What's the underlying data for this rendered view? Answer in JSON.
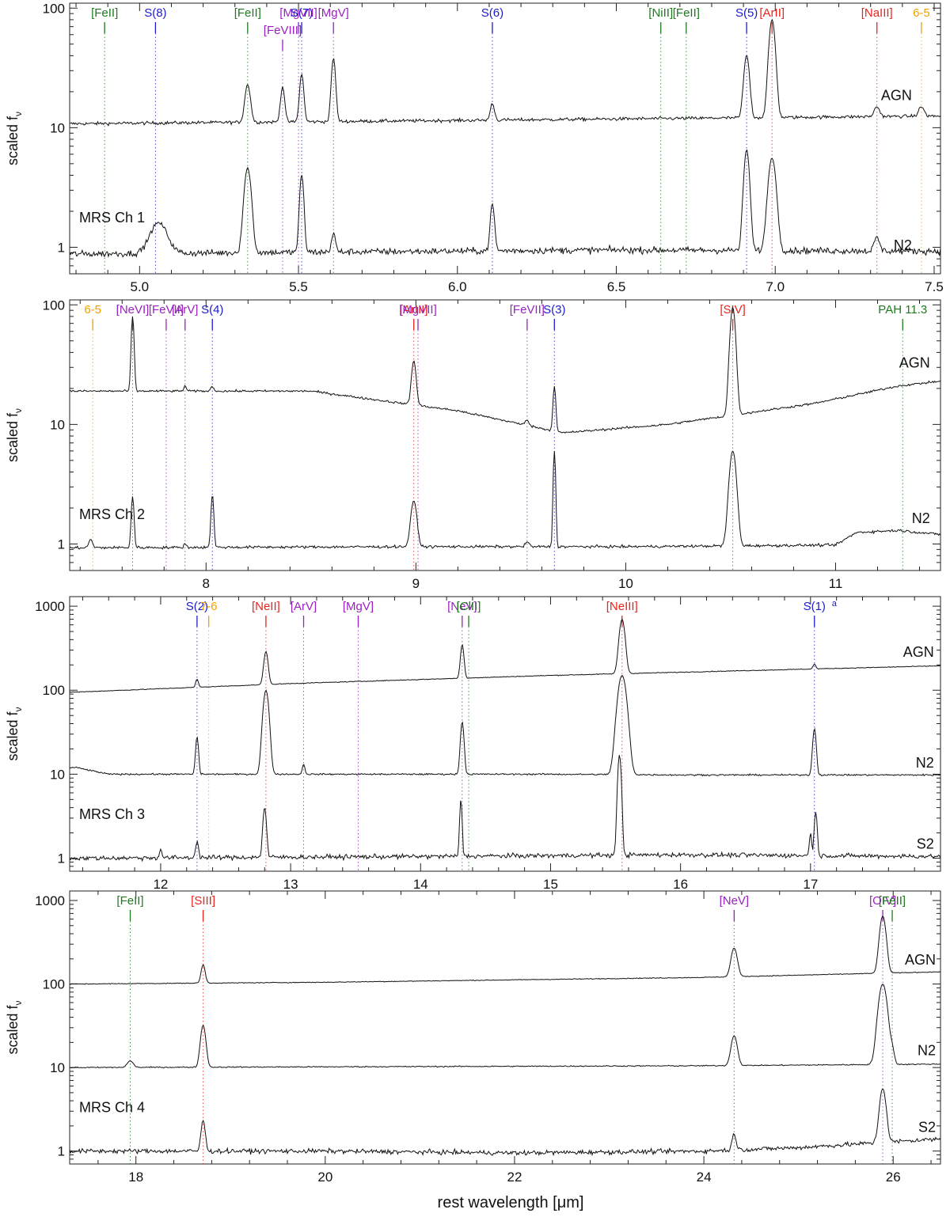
{
  "figure": {
    "xlabel": "rest wavelength [μm]"
  },
  "colors": {
    "red": "#e8241c",
    "blue": "#1c1ccc",
    "green": "#1f7a1f",
    "purple": "#9922c0",
    "orange": "#f2a000",
    "black": "#111111"
  },
  "chart_data": [
    {
      "type": "line",
      "panel_label": "MRS Ch 1",
      "ylabel": "scaled f_ν",
      "yscale": "log",
      "xlim": [
        4.78,
        7.52
      ],
      "ylim": [
        0.6,
        110
      ],
      "xticks": [
        5.0,
        5.5,
        6.0,
        6.5,
        7.0,
        7.5
      ],
      "xtick_labels": [
        "5.0",
        "5.5",
        "6.0",
        "6.5",
        "7.0",
        "7.5"
      ],
      "yticks": [
        1,
        10,
        100
      ],
      "ytick_labels": [
        "1",
        "10",
        "100"
      ],
      "series": [
        {
          "name": "AGN",
          "continuum": [
            [
              4.8,
              10.8
            ],
            [
              6.0,
              11.5
            ],
            [
              7.47,
              12.5
            ]
          ],
          "noise": 0.03,
          "label_x": 7.43,
          "label_y": 17,
          "peaks": [
            [
              5.34,
              23,
              0.008
            ],
            [
              5.45,
              22,
              0.006
            ],
            [
              5.51,
              28,
              0.006
            ],
            [
              5.61,
              38,
              0.006
            ],
            [
              6.11,
              16,
              0.006
            ],
            [
              6.91,
              40,
              0.008
            ],
            [
              6.99,
              80,
              0.009
            ],
            [
              7.32,
              15,
              0.008
            ],
            [
              7.46,
              15,
              0.008
            ]
          ]
        },
        {
          "name": "N2",
          "continuum": [
            [
              4.8,
              0.88
            ],
            [
              6.0,
              0.93
            ],
            [
              6.5,
              0.95
            ],
            [
              7.47,
              0.93
            ]
          ],
          "noise": 0.06,
          "label_x": 7.43,
          "label_y": 0.95,
          "peaks": [
            [
              5.06,
              1.6,
              0.025
            ],
            [
              5.34,
              4.6,
              0.01
            ],
            [
              5.51,
              4.0,
              0.006
            ],
            [
              5.61,
              1.3,
              0.006
            ],
            [
              6.11,
              2.3,
              0.006
            ],
            [
              6.91,
              6.5,
              0.008
            ],
            [
              6.99,
              5.6,
              0.011
            ],
            [
              7.32,
              1.2,
              0.008
            ]
          ]
        }
      ],
      "lines": [
        {
          "label": "[FeII]",
          "x": 4.89,
          "color": "green",
          "low": false
        },
        {
          "label": "S(8)",
          "x": 5.05,
          "color": "blue",
          "low": false
        },
        {
          "label": "[FeII]",
          "x": 5.34,
          "color": "green",
          "low": false
        },
        {
          "label": "[FeVIII]",
          "x": 5.45,
          "color": "purple",
          "low": true
        },
        {
          "label": "[MgVII]",
          "x": 5.5,
          "color": "purple",
          "low": false
        },
        {
          "label": "S(7)",
          "x": 5.51,
          "color": "blue",
          "low": false
        },
        {
          "label": "[MgV]",
          "x": 5.61,
          "color": "purple",
          "low": false
        },
        {
          "label": "S(6)",
          "x": 6.11,
          "color": "blue",
          "low": false
        },
        {
          "label": "[NiII]",
          "x": 6.64,
          "color": "green",
          "low": false
        },
        {
          "label": "[FeII]",
          "x": 6.72,
          "color": "green",
          "low": false
        },
        {
          "label": "S(5)",
          "x": 6.91,
          "color": "blue",
          "low": false
        },
        {
          "label": "[ArII]",
          "x": 6.99,
          "color": "red",
          "low": false
        },
        {
          "label": "[NaIII]",
          "x": 7.32,
          "color": "red",
          "low": false
        },
        {
          "label": "6-5",
          "x": 7.46,
          "color": "orange",
          "low": false
        }
      ]
    },
    {
      "type": "line",
      "panel_label": "MRS Ch 2",
      "ylabel": "scaled f_ν",
      "yscale": "log",
      "xlim": [
        7.35,
        11.5
      ],
      "ylim": [
        0.6,
        110
      ],
      "xticks": [
        8,
        9,
        10,
        11
      ],
      "xtick_labels": [
        "8",
        "9",
        "10",
        "11"
      ],
      "yticks": [
        1,
        10,
        100
      ],
      "ytick_labels": [
        "1",
        "10",
        "100"
      ],
      "series": [
        {
          "name": "AGN",
          "continuum": [
            [
              7.35,
              19
            ],
            [
              8.5,
              19
            ],
            [
              9.2,
              13
            ],
            [
              9.7,
              8.5
            ],
            [
              10.2,
              10
            ],
            [
              10.9,
              15
            ],
            [
              11.3,
              21
            ],
            [
              11.5,
              23
            ]
          ],
          "noise": 0.02,
          "label_x": 11.45,
          "label_y": 30,
          "peaks": [
            [
              7.65,
              80,
              0.006
            ],
            [
              7.9,
              21,
              0.006
            ],
            [
              8.03,
              21,
              0.006
            ],
            [
              8.99,
              34,
              0.01
            ],
            [
              9.53,
              11,
              0.008
            ],
            [
              9.66,
              21,
              0.006
            ],
            [
              10.51,
              95,
              0.012
            ]
          ]
        },
        {
          "name": "N2",
          "continuum": [
            [
              7.35,
              0.93
            ],
            [
              9.0,
              0.95
            ],
            [
              10.0,
              0.95
            ],
            [
              11.0,
              0.98
            ],
            [
              11.1,
              1.25
            ],
            [
              11.3,
              1.3
            ],
            [
              11.5,
              1.2
            ]
          ],
          "noise": 0.025,
          "label_x": 11.45,
          "label_y": 1.5,
          "peaks": [
            [
              7.45,
              1.1,
              0.008
            ],
            [
              7.65,
              2.5,
              0.006
            ],
            [
              7.9,
              1.0,
              0.006
            ],
            [
              8.03,
              2.6,
              0.006
            ],
            [
              8.99,
              2.3,
              0.013
            ],
            [
              9.53,
              1.05,
              0.008
            ],
            [
              9.66,
              6.0,
              0.005
            ],
            [
              10.51,
              6.0,
              0.015
            ]
          ]
        }
      ],
      "lines": [
        {
          "label": "6-5",
          "x": 7.46,
          "color": "orange",
          "low": false
        },
        {
          "label": "[NeVI]",
          "x": 7.65,
          "color": "purple",
          "low": false
        },
        {
          "label": "[FeVII]",
          "x": 7.81,
          "color": "purple",
          "low": false
        },
        {
          "label": "[ArV]",
          "x": 7.9,
          "color": "purple",
          "low": false
        },
        {
          "label": "S(4)",
          "x": 8.03,
          "color": "blue",
          "low": false
        },
        {
          "label": "[ArIII]",
          "x": 8.99,
          "color": "red",
          "low": false
        },
        {
          "label": "[MgVII]",
          "x": 9.01,
          "color": "purple",
          "low": false
        },
        {
          "label": "[FeVII]",
          "x": 9.53,
          "color": "purple",
          "low": false
        },
        {
          "label": "S(3)",
          "x": 9.66,
          "color": "blue",
          "low": false
        },
        {
          "label": "[SIV]",
          "x": 10.51,
          "color": "red",
          "low": false
        },
        {
          "label": "PAH 11.3",
          "x": 11.32,
          "color": "green",
          "low": false
        }
      ]
    },
    {
      "type": "line",
      "panel_label": "MRS Ch 3",
      "ylabel": "scaled f_ν",
      "yscale": "log",
      "xlim": [
        11.3,
        18.0
      ],
      "ylim": [
        0.7,
        1300
      ],
      "xticks": [
        12,
        13,
        14,
        15,
        16,
        17
      ],
      "xtick_labels": [
        "12",
        "13",
        "14",
        "15",
        "16",
        "17"
      ],
      "yticks": [
        1,
        10,
        100,
        1000
      ],
      "ytick_labels": [
        "1",
        "10",
        "100",
        "1000"
      ],
      "series": [
        {
          "name": "AGN",
          "continuum": [
            [
              11.35,
              95
            ],
            [
              13.0,
              120
            ],
            [
              15.0,
              150
            ],
            [
              18.0,
              195
            ]
          ],
          "noise": 0.01,
          "label_x": 17.95,
          "label_y": 250,
          "peaks": [
            [
              12.28,
              135,
              0.01
            ],
            [
              12.81,
              290,
              0.015
            ],
            [
              14.32,
              350,
              0.012
            ],
            [
              15.55,
              700,
              0.02
            ],
            [
              17.03,
              205,
              0.01
            ]
          ]
        },
        {
          "name": "N2",
          "continuum": [
            [
              11.35,
              12
            ],
            [
              11.6,
              10
            ],
            [
              15.0,
              10
            ],
            [
              16.0,
              9.8
            ],
            [
              18.0,
              9.8
            ]
          ],
          "noise": 0.02,
          "label_x": 17.95,
          "label_y": 12,
          "peaks": [
            [
              12.28,
              28,
              0.01
            ],
            [
              12.81,
              100,
              0.02
            ],
            [
              13.1,
              13,
              0.01
            ],
            [
              14.32,
              42,
              0.012
            ],
            [
              15.55,
              150,
              0.03
            ],
            [
              17.03,
              35,
              0.012
            ]
          ]
        },
        {
          "name": "S2",
          "continuum": [
            [
              11.35,
              1.0
            ],
            [
              14.0,
              1.05
            ],
            [
              16.0,
              1.1
            ],
            [
              18.0,
              1.05
            ]
          ],
          "noise": 0.06,
          "label_x": 17.95,
          "label_y": 1.3,
          "peaks": [
            [
              12.0,
              1.3,
              0.008
            ],
            [
              12.28,
              1.6,
              0.01
            ],
            [
              12.8,
              4.0,
              0.012
            ],
            [
              14.31,
              5.0,
              0.008
            ],
            [
              15.53,
              17,
              0.012
            ],
            [
              17.0,
              2.0,
              0.008
            ],
            [
              17.04,
              3.5,
              0.01
            ]
          ]
        }
      ],
      "lines": [
        {
          "label": "S(2)",
          "x": 12.28,
          "color": "blue",
          "low": false
        },
        {
          "label": "7-6",
          "x": 12.37,
          "color": "orange",
          "low": false
        },
        {
          "label": "[NeII]",
          "x": 12.81,
          "color": "red",
          "low": false
        },
        {
          "label": "[ArV]",
          "x": 13.1,
          "color": "purple",
          "low": false
        },
        {
          "label": "[MgV]",
          "x": 13.52,
          "color": "purple",
          "low": false
        },
        {
          "label": "[NeV]",
          "x": 14.32,
          "color": "purple",
          "low": false
        },
        {
          "label": "[ClII]",
          "x": 14.37,
          "color": "green",
          "low": false
        },
        {
          "label": "[NeIII]",
          "x": 15.55,
          "color": "red",
          "low": false
        },
        {
          "label": "S(1)",
          "x": 17.03,
          "color": "blue",
          "low": false
        }
      ],
      "note": "a"
    },
    {
      "type": "line",
      "panel_label": "MRS Ch 4",
      "ylabel": "scaled f_ν",
      "yscale": "log",
      "xlim": [
        17.3,
        26.5
      ],
      "ylim": [
        0.7,
        1300
      ],
      "xticks": [
        18,
        20,
        22,
        24,
        26
      ],
      "xtick_labels": [
        "18",
        "20",
        "22",
        "24",
        "26"
      ],
      "yticks": [
        1,
        10,
        100,
        1000
      ],
      "ytick_labels": [
        "1",
        "10",
        "100",
        "1000"
      ],
      "series": [
        {
          "name": "AGN",
          "continuum": [
            [
              17.35,
              100
            ],
            [
              20.0,
              105
            ],
            [
              24.0,
              120
            ],
            [
              26.5,
              140
            ]
          ],
          "noise": 0.01,
          "label_x": 26.45,
          "label_y": 170,
          "peaks": [
            [
              18.71,
              170,
              0.02
            ],
            [
              24.32,
              270,
              0.03
            ],
            [
              25.89,
              650,
              0.03
            ]
          ]
        },
        {
          "name": "N2",
          "continuum": [
            [
              17.35,
              10
            ],
            [
              24.0,
              10.5
            ],
            [
              26.5,
              11
            ]
          ],
          "noise": 0.015,
          "label_x": 26.45,
          "label_y": 14,
          "peaks": [
            [
              17.94,
              12,
              0.03
            ],
            [
              18.71,
              32,
              0.025
            ],
            [
              24.32,
              24,
              0.03
            ],
            [
              25.89,
              100,
              0.04
            ],
            [
              25.99,
              16,
              0.02
            ]
          ]
        },
        {
          "name": "S2",
          "continuum": [
            [
              17.35,
              1.0
            ],
            [
              20.0,
              1.0
            ],
            [
              22.0,
              0.95
            ],
            [
              24.0,
              1.0
            ],
            [
              25.0,
              1.1
            ],
            [
              26.5,
              1.4
            ]
          ],
          "noise": 0.06,
          "label_x": 26.45,
          "label_y": 1.7,
          "peaks": [
            [
              18.71,
              2.3,
              0.02
            ],
            [
              24.32,
              1.6,
              0.02
            ],
            [
              25.89,
              5.6,
              0.03
            ]
          ]
        }
      ],
      "lines": [
        {
          "label": "[FeII]",
          "x": 17.94,
          "color": "green",
          "low": false
        },
        {
          "label": "[SIII]",
          "x": 18.71,
          "color": "red",
          "low": false
        },
        {
          "label": "[NeV]",
          "x": 24.32,
          "color": "purple",
          "low": false
        },
        {
          "label": "[OIV]",
          "x": 25.89,
          "color": "purple",
          "low": false
        },
        {
          "label": "[FeII]",
          "x": 25.99,
          "color": "green",
          "low": false
        }
      ]
    }
  ]
}
